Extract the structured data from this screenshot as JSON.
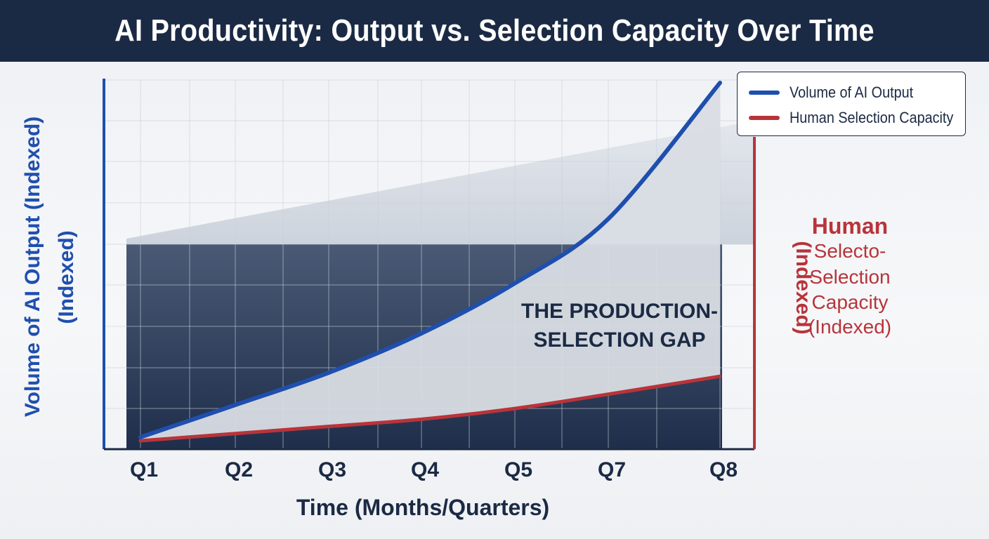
{
  "title": "AI Productivity: Output vs. Selection Capacity Over Time",
  "colors": {
    "header_bg": "#1b2a44",
    "output": "#1f4fae",
    "selection": "#b8343a",
    "dark_fill": "#1f2e4a",
    "gap_fill": "#d9dde4"
  },
  "legend": {
    "output_label": "Volume of AI Output",
    "selection_label": "Human Selection Capacity"
  },
  "annotations": {
    "gap_line1": "THE PRODUCTION-",
    "gap_line2": "SELECTION GAP"
  },
  "right_axis": {
    "lines": [
      "Human",
      "Selecto-",
      "Selection",
      "Capacity",
      "(Indexed)"
    ],
    "rotated_text": "(Indexed)"
  },
  "chart_data": {
    "type": "line",
    "title": "AI Productivity: Output vs. Selection Capacity Over Time",
    "xlabel": "Time (Months/Quarters)",
    "ylabel": [
      "Volume of AI Output (Indexed)",
      "(Indexed)"
    ],
    "categories": [
      "Q1",
      "Q2",
      "Q3",
      "Q4",
      "Q5",
      "Q7",
      "Q8"
    ],
    "grid": true,
    "legend_position": "top-right",
    "series": [
      {
        "name": "Volume of AI Output",
        "values": [
          1,
          10,
          19,
          30,
          44,
          62,
          100
        ],
        "axis": "left"
      },
      {
        "name": "Human Selection Capacity",
        "values": [
          0,
          2,
          4,
          6,
          9,
          13,
          18
        ],
        "axis": "left"
      }
    ]
  }
}
